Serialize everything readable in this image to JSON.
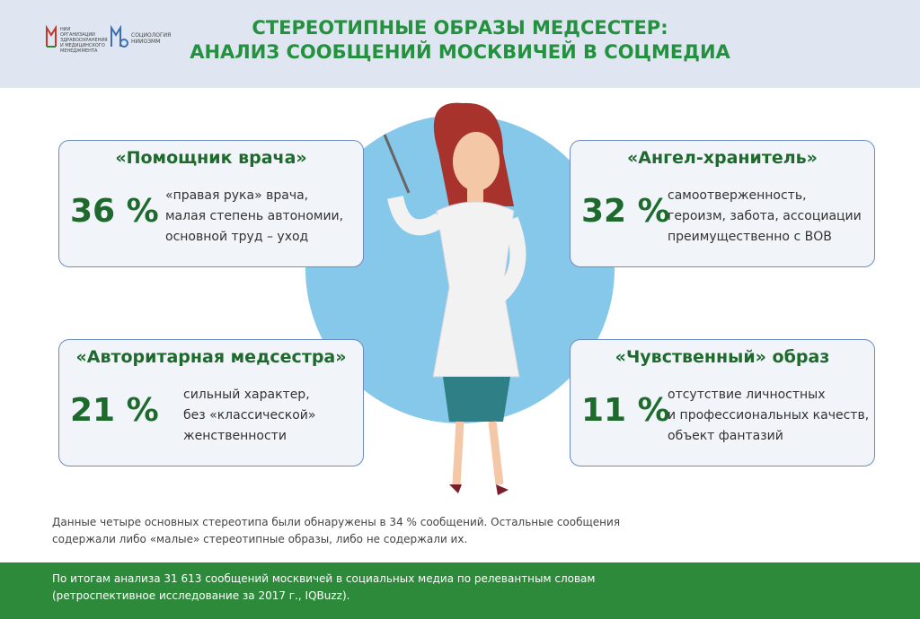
{
  "header": {
    "title_lines": [
      "СТЕРЕОТИПНЫЕ ОБРАЗЫ МЕДСЕСТЕР:",
      "АНАЛИЗ СООБЩЕНИЙ МОСКВИЧЕЙ В СОЦМЕДИА"
    ],
    "logo1_lines": [
      "НИИ",
      "ОРГАНИЗАЦИИ",
      "ЗДРАВООХРАНЕНИЯ",
      "И МЕДИЦИНСКОГО",
      "МЕНЕДЖМЕНТА"
    ],
    "logo2_lines": [
      "СОЦИОЛОГИЯ",
      "НИИОЗММ"
    ]
  },
  "cards": [
    {
      "title": "«Помощник врача»",
      "percent": "36 %",
      "lines": [
        "«правая рука» врача,",
        "малая степень автономии,",
        "основной труд – уход"
      ]
    },
    {
      "title": "«Ангел-хранитель»",
      "percent": "32 %",
      "lines": [
        "самоотверженность,",
        "героизм, забота, ассоциации",
        "преимущественно с ВОВ"
      ]
    },
    {
      "title": "«Авторитарная медсестра»",
      "percent": "21 %",
      "lines": [
        "сильный характер,",
        "без «классической»",
        "женственности"
      ]
    },
    {
      "title": "«Чувственный» образ",
      "percent": "11 %",
      "lines": [
        "отсутствие личностных",
        "и профессиональных качеств,",
        "объект фантазий"
      ]
    }
  ],
  "note_lines": [
    "Данные четыре основных стереотипа были обнаружены в 34 % сообщений. Остальные сообщения",
    "содержали либо «малые» стереотипные образы, либо не содержали их."
  ],
  "footer_lines": [
    "По итогам анализа 31 613 сообщений москвичей в социальных медиа по релевантным словам",
    "(ретроспективное исследование за 2017 г., IQBuzz)."
  ]
}
